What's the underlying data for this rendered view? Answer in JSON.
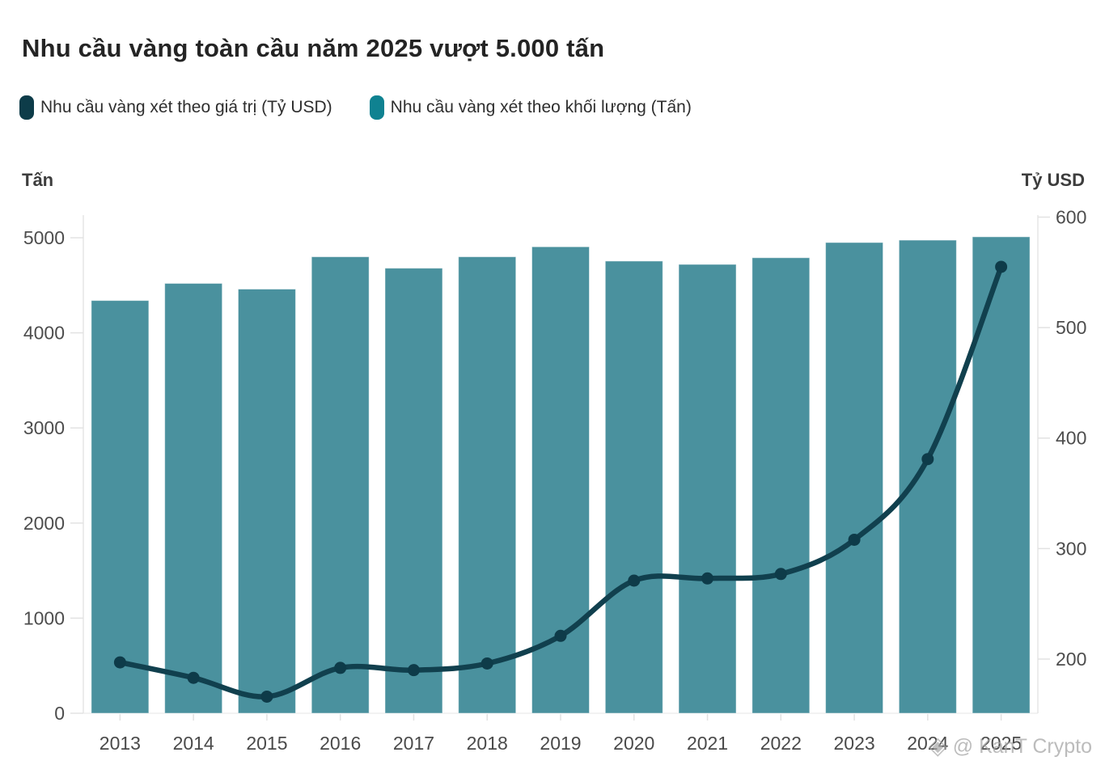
{
  "title": "Nhu cầu vàng toàn cầu năm 2025 vượt 5.000 tấn",
  "legend": [
    {
      "label": "Nhu cầu vàng xét theo giá trị (Tỷ USD)",
      "color": "#0d3c49"
    },
    {
      "label": "Nhu cầu vàng xét theo khối lượng (Tấn)",
      "color": "#0f8291"
    }
  ],
  "axis_titles": {
    "left": "Tấn",
    "right": "Tỷ USD"
  },
  "watermark": {
    "icon": "diamond-logo",
    "text": "@ KanT Crypto"
  },
  "colors": {
    "bar": "#4a919e",
    "bar_border": "#ffffff",
    "line": "#11404e",
    "point": "#0e3b49",
    "axis_line": "#e6e6e6",
    "tick": "#e2e2e2",
    "tick_label": "#4d4d4d"
  },
  "chart_data": {
    "type": "combo",
    "title": "Nhu cầu vàng toàn cầu năm 2025 vượt 5.000 tấn",
    "categories": [
      "2013",
      "2014",
      "2015",
      "2016",
      "2017",
      "2018",
      "2019",
      "2020",
      "2021",
      "2022",
      "2023",
      "2024",
      "2025"
    ],
    "series": [
      {
        "name": "Nhu cầu vàng xét theo khối lượng (Tấn)",
        "type": "bar",
        "axis": "left",
        "values": [
          4340,
          4520,
          4460,
          4800,
          4680,
          4800,
          4905,
          4755,
          4720,
          4790,
          4950,
          4975,
          5010
        ]
      },
      {
        "name": "Nhu cầu vàng xét theo giá trị (Tỷ USD)",
        "type": "line",
        "axis": "right",
        "values": [
          197,
          183,
          166,
          192,
          190,
          196,
          221,
          271,
          273,
          277,
          308,
          381,
          555
        ]
      }
    ],
    "y_left": {
      "title": "Tấn",
      "min": 0,
      "max": 5250,
      "ticks": [
        0,
        1000,
        2000,
        3000,
        4000,
        5000
      ]
    },
    "y_right": {
      "title": "Tỷ USD",
      "min": 151,
      "max": 602,
      "ticks": [
        200,
        300,
        400,
        500,
        600
      ]
    },
    "grid": false,
    "legend_position": "top"
  }
}
